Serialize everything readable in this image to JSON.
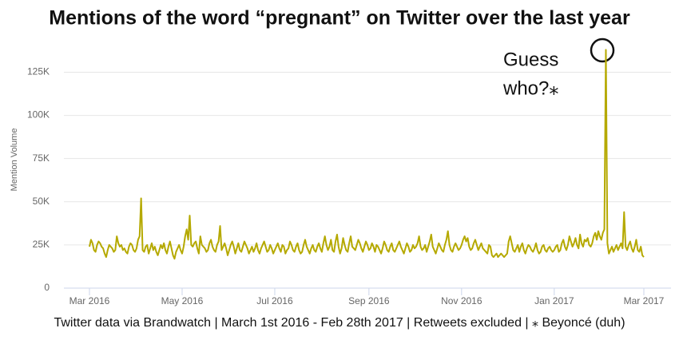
{
  "chart_data": {
    "type": "line",
    "title": "Mentions of the word “pregnant” on Twitter over the last year",
    "y_label": "Mention Volume",
    "annotation": [
      "Guess",
      "who?⁎"
    ],
    "footer": "Twitter data via Brandwatch | March 1st 2016 - Feb 28th 2017 | Retweets excluded | ⁎ Beyoncé (duh)",
    "color": "#b5a900",
    "grid": true,
    "ylim": [
      0,
      140
    ],
    "yticks": [
      0,
      {
        "value": 25,
        "label": "25K"
      },
      {
        "value": 50,
        "label": "50K"
      },
      {
        "value": 75,
        "label": "75K"
      },
      {
        "value": 100,
        "label": "100K"
      },
      {
        "value": 125,
        "label": "125K"
      }
    ],
    "categories": [
      "Mar 2016",
      null,
      null,
      null,
      null,
      null,
      null,
      null,
      null,
      null,
      null,
      null,
      null,
      null,
      null,
      null,
      null,
      null,
      null,
      null,
      null,
      null,
      null,
      null,
      null,
      null,
      null,
      null,
      null,
      null,
      null,
      null,
      null,
      null,
      null,
      null,
      null,
      null,
      null,
      null,
      null,
      null,
      null,
      null,
      null,
      null,
      null,
      null,
      null,
      null,
      null,
      null,
      null,
      null,
      null,
      null,
      null,
      null,
      null,
      null,
      null,
      "May 2016",
      null,
      null,
      null,
      null,
      null,
      null,
      null,
      null,
      null,
      null,
      null,
      null,
      null,
      null,
      null,
      null,
      null,
      null,
      null,
      null,
      null,
      null,
      null,
      null,
      null,
      null,
      null,
      null,
      null,
      null,
      null,
      null,
      null,
      null,
      null,
      null,
      null,
      null,
      null,
      null,
      null,
      null,
      null,
      null,
      null,
      null,
      null,
      null,
      null,
      null,
      null,
      null,
      null,
      null,
      null,
      null,
      null,
      null,
      null,
      null,
      "Jul 2016",
      null,
      null,
      null,
      null,
      null,
      null,
      null,
      null,
      null,
      null,
      null,
      null,
      null,
      null,
      null,
      null,
      null,
      null,
      null,
      null,
      null,
      null,
      null,
      null,
      null,
      null,
      null,
      null,
      null,
      null,
      null,
      null,
      null,
      null,
      null,
      null,
      null,
      null,
      null,
      null,
      null,
      null,
      null,
      null,
      null,
      null,
      null,
      null,
      null,
      null,
      null,
      null,
      null,
      null,
      null,
      null,
      null,
      null,
      null,
      null,
      null,
      "Sep 2016",
      null,
      null,
      null,
      null,
      null,
      null,
      null,
      null,
      null,
      null,
      null,
      null,
      null,
      null,
      null,
      null,
      null,
      null,
      null,
      null,
      null,
      null,
      null,
      null,
      null,
      null,
      null,
      null,
      null,
      null,
      null,
      null,
      null,
      null,
      null,
      null,
      null,
      null,
      null,
      null,
      null,
      null,
      null,
      null,
      null,
      null,
      null,
      null,
      null,
      null,
      null,
      null,
      null,
      null,
      null,
      null,
      null,
      null,
      null,
      null,
      "Nov 2016",
      null,
      null,
      null,
      null,
      null,
      null,
      null,
      null,
      null,
      null,
      null,
      null,
      null,
      null,
      null,
      null,
      null,
      null,
      null,
      null,
      null,
      null,
      null,
      null,
      null,
      null,
      null,
      null,
      null,
      null,
      null,
      null,
      null,
      null,
      null,
      null,
      null,
      null,
      null,
      null,
      null,
      null,
      null,
      null,
      null,
      null,
      null,
      null,
      null,
      null,
      null,
      null,
      null,
      null,
      null,
      null,
      null,
      null,
      null,
      null,
      "Jan 2017",
      null,
      null,
      null,
      null,
      null,
      null,
      null,
      null,
      null,
      null,
      null,
      null,
      null,
      null,
      null,
      null,
      null,
      null,
      null,
      null,
      null,
      null,
      null,
      null,
      null,
      null,
      null,
      null,
      null,
      null,
      null,
      null,
      null,
      null,
      null,
      null,
      null,
      null,
      null,
      null,
      null,
      null,
      null,
      null,
      null,
      null,
      null,
      null,
      null,
      null,
      null,
      null,
      null,
      null,
      null,
      null,
      null,
      null,
      "Mar 2017"
    ],
    "values": [
      24,
      28,
      26,
      22,
      21,
      25,
      27,
      26,
      24,
      23,
      20,
      18,
      22,
      25,
      24,
      23,
      21,
      22,
      30,
      26,
      24,
      25,
      22,
      23,
      21,
      20,
      24,
      26,
      25,
      22,
      21,
      23,
      28,
      30,
      52,
      22,
      21,
      24,
      25,
      20,
      23,
      26,
      22,
      24,
      21,
      19,
      22,
      25,
      23,
      26,
      22,
      20,
      24,
      27,
      23,
      19,
      17,
      21,
      23,
      25,
      22,
      20,
      24,
      30,
      34,
      28,
      42,
      25,
      24,
      26,
      27,
      23,
      20,
      30,
      25,
      24,
      23,
      21,
      22,
      26,
      28,
      24,
      22,
      21,
      25,
      27,
      36,
      22,
      24,
      26,
      23,
      19,
      22,
      25,
      27,
      24,
      20,
      23,
      26,
      22,
      21,
      24,
      27,
      25,
      23,
      20,
      22,
      24,
      21,
      23,
      26,
      22,
      20,
      23,
      25,
      27,
      24,
      21,
      22,
      25,
      23,
      20,
      22,
      24,
      26,
      23,
      21,
      25,
      24,
      20,
      22,
      23,
      27,
      25,
      22,
      21,
      24,
      26,
      22,
      20,
      21,
      25,
      28,
      24,
      22,
      20,
      23,
      25,
      22,
      21,
      24,
      26,
      23,
      21,
      26,
      30,
      25,
      22,
      24,
      28,
      22,
      21,
      27,
      31,
      24,
      20,
      23,
      29,
      25,
      22,
      21,
      26,
      30,
      24,
      23,
      22,
      25,
      28,
      26,
      23,
      21,
      24,
      27,
      25,
      22,
      23,
      26,
      24,
      21,
      25,
      24,
      22,
      20,
      23,
      27,
      25,
      22,
      21,
      24,
      26,
      22,
      21,
      23,
      25,
      27,
      24,
      22,
      20,
      23,
      26,
      24,
      21,
      22,
      25,
      23,
      24,
      26,
      30,
      24,
      22,
      23,
      25,
      21,
      24,
      27,
      31,
      24,
      22,
      20,
      23,
      26,
      24,
      22,
      21,
      25,
      28,
      33,
      25,
      22,
      21,
      24,
      26,
      24,
      22,
      23,
      25,
      28,
      30,
      27,
      29,
      24,
      22,
      23,
      26,
      28,
      25,
      22,
      24,
      26,
      23,
      22,
      21,
      20,
      25,
      24,
      19,
      18,
      19,
      20,
      18,
      19,
      20,
      19,
      18,
      19,
      20,
      27,
      30,
      26,
      22,
      21,
      23,
      25,
      21,
      24,
      26,
      22,
      20,
      23,
      25,
      24,
      22,
      21,
      23,
      26,
      22,
      20,
      21,
      24,
      25,
      22,
      21,
      23,
      24,
      22,
      21,
      22,
      24,
      25,
      21,
      22,
      26,
      28,
      24,
      22,
      25,
      30,
      27,
      24,
      26,
      29,
      25,
      23,
      31,
      26,
      24,
      28,
      27,
      29,
      25,
      24,
      26,
      30,
      32,
      28,
      33,
      30,
      28,
      32,
      34,
      138,
      26,
      20,
      22,
      24,
      21,
      23,
      25,
      22,
      24,
      26,
      23,
      44,
      24,
      22,
      25,
      27,
      23,
      21,
      24,
      28,
      22,
      21,
      24,
      19,
      18
    ]
  }
}
